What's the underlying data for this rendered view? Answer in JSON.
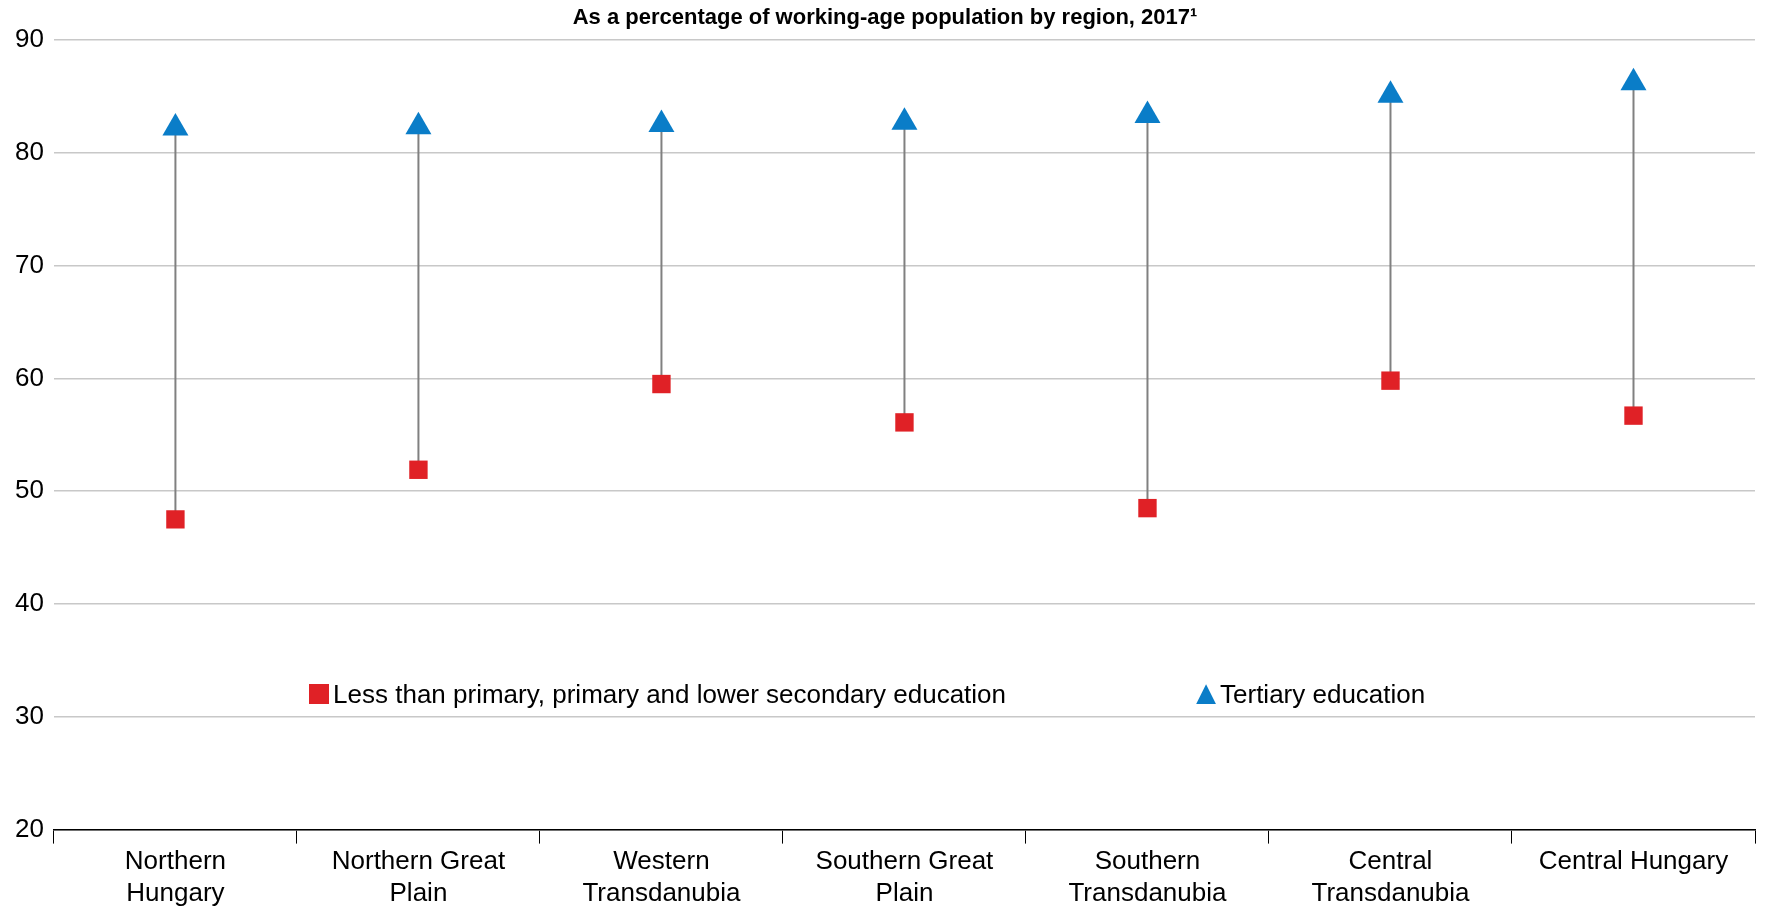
{
  "chart_data": {
    "type": "scatter",
    "title": "As a percentage of working-age population by region, 2017¹",
    "categories": [
      "Northern Hungary",
      "Northern Great Plain",
      "Western Transdanubia",
      "Southern Great Plain",
      "Southern Transdanubia",
      "Central Transdanubia",
      "Central Hungary"
    ],
    "series": [
      {
        "name": "Less than primary, primary and lower secondary education",
        "color": "#e02126",
        "marker": "square",
        "values": [
          47.5,
          51.9,
          59.5,
          56.1,
          48.5,
          59.8,
          56.7
        ]
      },
      {
        "name": "Tertiary education",
        "color": "#0a7dc8",
        "marker": "triangle",
        "values": [
          82.2,
          82.3,
          82.5,
          82.7,
          83.3,
          85.1,
          86.2
        ]
      }
    ],
    "ylim": [
      20,
      90
    ],
    "yticks": [
      20,
      30,
      40,
      50,
      60,
      70,
      80,
      90
    ],
    "grid": "y",
    "legend": "bottom"
  }
}
